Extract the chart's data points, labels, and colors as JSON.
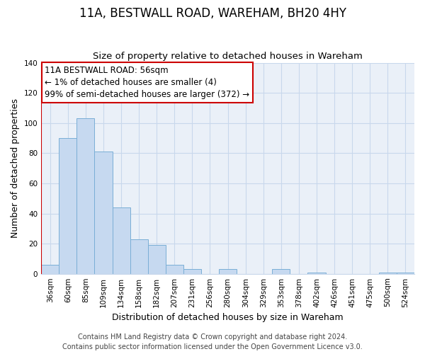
{
  "title": "11A, BESTWALL ROAD, WAREHAM, BH20 4HY",
  "subtitle": "Size of property relative to detached houses in Wareham",
  "xlabel": "Distribution of detached houses by size in Wareham",
  "ylabel": "Number of detached properties",
  "bar_labels": [
    "36sqm",
    "60sqm",
    "85sqm",
    "109sqm",
    "134sqm",
    "158sqm",
    "182sqm",
    "207sqm",
    "231sqm",
    "256sqm",
    "280sqm",
    "304sqm",
    "329sqm",
    "353sqm",
    "378sqm",
    "402sqm",
    "426sqm",
    "451sqm",
    "475sqm",
    "500sqm",
    "524sqm"
  ],
  "bar_values": [
    6,
    90,
    103,
    81,
    44,
    23,
    19,
    6,
    3,
    0,
    3,
    0,
    0,
    3,
    0,
    1,
    0,
    0,
    0,
    1,
    1
  ],
  "bar_color": "#c6d9f0",
  "bar_edge_color": "#7aaed6",
  "annotation_title": "11A BESTWALL ROAD: 56sqm",
  "annotation_line1": "← 1% of detached houses are smaller (4)",
  "annotation_line2": "99% of semi-detached houses are larger (372) →",
  "annotation_box_facecolor": "#ffffff",
  "annotation_box_edge_color": "#cc0000",
  "vline_color": "#cc0000",
  "ylim": [
    0,
    140
  ],
  "yticks": [
    0,
    20,
    40,
    60,
    80,
    100,
    120,
    140
  ],
  "footer_line1": "Contains HM Land Registry data © Crown copyright and database right 2024.",
  "footer_line2": "Contains public sector information licensed under the Open Government Licence v3.0.",
  "bg_color": "#ffffff",
  "plot_bg_color": "#eaf0f8",
  "grid_color": "#c8d8ec",
  "title_fontsize": 12,
  "subtitle_fontsize": 9.5,
  "axis_label_fontsize": 9,
  "tick_fontsize": 7.5,
  "annotation_fontsize": 8.5,
  "footer_fontsize": 7
}
